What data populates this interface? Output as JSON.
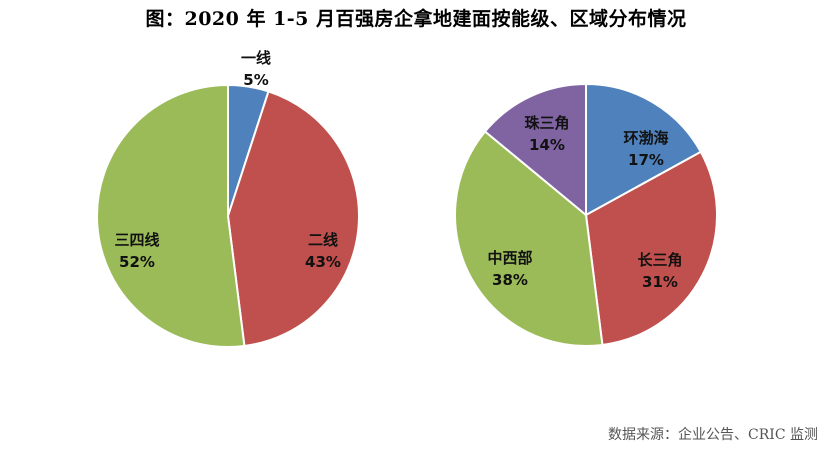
{
  "title": "图：2020 年 1-5 月百强房企拿地建面按能级、区域分布情况",
  "source": "数据来源：企业公告、CRIC 监测",
  "chart_data": [
    {
      "type": "pie",
      "categories": [
        "一线",
        "二线",
        "三四线"
      ],
      "values": [
        5,
        43,
        52
      ],
      "value_labels": [
        "5%",
        "43%",
        "52%"
      ],
      "colors": [
        "#4F81BD",
        "#C0504D",
        "#9BBB59"
      ]
    },
    {
      "type": "pie",
      "categories": [
        "环渤海",
        "长三角",
        "中西部",
        "珠三角"
      ],
      "values": [
        17,
        31,
        38,
        14
      ],
      "value_labels": [
        "17%",
        "31%",
        "38%",
        "14%"
      ],
      "colors": [
        "#4F81BD",
        "#C0504D",
        "#9BBB59",
        "#8064A2"
      ]
    }
  ]
}
